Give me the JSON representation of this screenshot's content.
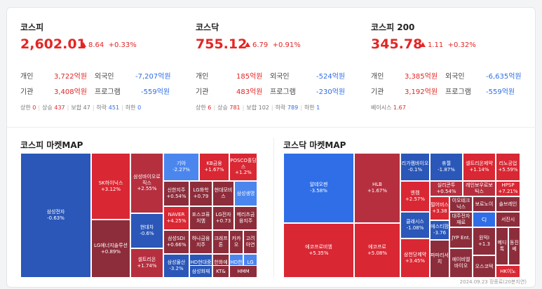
{
  "indices": [
    {
      "name": "코스피",
      "value": "2,602.01",
      "change": "8.64",
      "rate": "+0.33%",
      "individual_label": "개인",
      "individual": "3,722억원",
      "foreign_label": "외국인",
      "foreign": "-7,207억원",
      "institution_label": "기관",
      "institution": "3,408억원",
      "program_label": "프로그램",
      "program": "-559억원",
      "stats": {
        "upper_limit_label": "상한",
        "upper_limit": "0",
        "rise_label": "상승",
        "rise": "437",
        "flat_label": "보합",
        "flat": "47",
        "fall_label": "하락",
        "fall": "451",
        "lower_limit_label": "하한",
        "lower_limit": "0"
      }
    },
    {
      "name": "코스닥",
      "value": "755.12",
      "change": "6.79",
      "rate": "+0.91%",
      "individual_label": "개인",
      "individual": "185억원",
      "foreign_label": "외국인",
      "foreign": "-524억원",
      "institution_label": "기관",
      "institution": "483억원",
      "program_label": "프로그램",
      "program": "-230억원",
      "stats": {
        "upper_limit_label": "상한",
        "upper_limit": "6",
        "rise_label": "상승",
        "rise": "781",
        "flat_label": "보합",
        "flat": "102",
        "fall_label": "하락",
        "fall": "789",
        "lower_limit_label": "하한",
        "lower_limit": "1"
      }
    },
    {
      "name": "코스피 200",
      "value": "345.78",
      "change": "1.11",
      "rate": "+0.32%",
      "individual_label": "개인",
      "individual": "3,385억원",
      "foreign_label": "외국인",
      "foreign": "-6,635억원",
      "institution_label": "기관",
      "institution": "3,192억원",
      "program_label": "프로그램",
      "program": "-559억원",
      "basis_label": "베이시스",
      "basis": "1.67"
    }
  ],
  "kospi_map": {
    "title": "코스피 마켓MAP",
    "tiles": [
      {
        "name": "삼성전자",
        "rate": "-0.63%"
      },
      {
        "name": "SK하이닉스",
        "rate": "+3.12%"
      },
      {
        "name": "LG에너지솔루션",
        "rate": "+0.89%"
      },
      {
        "name": "삼성바이오로직스",
        "rate": "+2.55%"
      },
      {
        "name": "현대차",
        "rate": "-0.6%"
      },
      {
        "name": "셀트리온",
        "rate": "+1.74%"
      },
      {
        "name": "기아",
        "rate": "-2.27%"
      },
      {
        "name": "KB금융",
        "rate": "+1.67%"
      },
      {
        "name": "POSCO홀딩스",
        "rate": "+1.2%"
      },
      {
        "name": "신한지주",
        "rate": "+0.54%"
      },
      {
        "name": "LG화학",
        "rate": "+0.79"
      },
      {
        "name": "현대모비스",
        "rate": ""
      },
      {
        "name": "삼성생명",
        "rate": ""
      },
      {
        "name": "NAVER",
        "rate": "+4.25%"
      },
      {
        "name": "포스코퓨처엠",
        "rate": ""
      },
      {
        "name": "LG전자",
        "rate": "+0.73"
      },
      {
        "name": "메리츠금융지주",
        "rate": ""
      },
      {
        "name": "삼성SDI",
        "rate": "+0.66%"
      },
      {
        "name": "하나금융지주",
        "rate": ""
      },
      {
        "name": "크래프톤",
        "rate": ""
      },
      {
        "name": "카카오",
        "rate": ""
      },
      {
        "name": "고려아연",
        "rate": ""
      },
      {
        "name": "삼성물산",
        "rate": "-3.2%"
      },
      {
        "name": "HD현대중공업",
        "rate": ""
      },
      {
        "name": "한화에어로스",
        "rate": ""
      },
      {
        "name": "HD한국",
        "rate": ""
      },
      {
        "name": "LG",
        "rate": "-0."
      },
      {
        "name": "삼성화재",
        "rate": ""
      },
      {
        "name": "KT&",
        "rate": ""
      },
      {
        "name": "HMM",
        "rate": ""
      }
    ]
  },
  "kosdaq_map": {
    "title": "코스닥 마켓MAP",
    "tiles": [
      {
        "name": "알테오젠",
        "rate": "-3.58%"
      },
      {
        "name": "HLB",
        "rate": "+1.67%"
      },
      {
        "name": "에코프로비엠",
        "rate": "+5.35%"
      },
      {
        "name": "에코프로",
        "rate": "+5.08%"
      },
      {
        "name": "리가켐바이오",
        "rate": "-0.1%"
      },
      {
        "name": "휴젤",
        "rate": "-1.87%"
      },
      {
        "name": "셀트리온제약",
        "rate": "+1.14%"
      },
      {
        "name": "리노공업",
        "rate": "+5.59%"
      },
      {
        "name": "엔켐",
        "rate": "+2.57%"
      },
      {
        "name": "실리콘투",
        "rate": "+0.54%"
      },
      {
        "name": "레인보우로보틱스",
        "rate": ""
      },
      {
        "name": "HPSP",
        "rate": "+7.21%"
      },
      {
        "name": "펄어비스",
        "rate": "+3.38"
      },
      {
        "name": "이오테크닉스",
        "rate": ""
      },
      {
        "name": "보로노이",
        "rate": ""
      },
      {
        "name": "솔브레인",
        "rate": ""
      },
      {
        "name": "클래시스",
        "rate": "-1.08%"
      },
      {
        "name": "에스티팜",
        "rate": "-3.76"
      },
      {
        "name": "대주전자재료",
        "rate": ""
      },
      {
        "name": "CJ",
        "rate": ""
      },
      {
        "name": "서진시",
        "rate": ""
      },
      {
        "name": "삼천당제약",
        "rate": "+3.45%"
      },
      {
        "name": "파마리서치",
        "rate": ""
      },
      {
        "name": "JYP Ent.",
        "rate": ""
      },
      {
        "name": "에이비엘바이오",
        "rate": ""
      },
      {
        "name": "원익I",
        "rate": "+1.3"
      },
      {
        "name": "오스코텍",
        "rate": ""
      },
      {
        "name": "메디톡",
        "rate": ""
      },
      {
        "name": "동진쎄",
        "rate": ""
      },
      {
        "name": "HK이노",
        "rate": ""
      }
    ]
  },
  "footer": "2024.09.23 장종료(20분지연)"
}
